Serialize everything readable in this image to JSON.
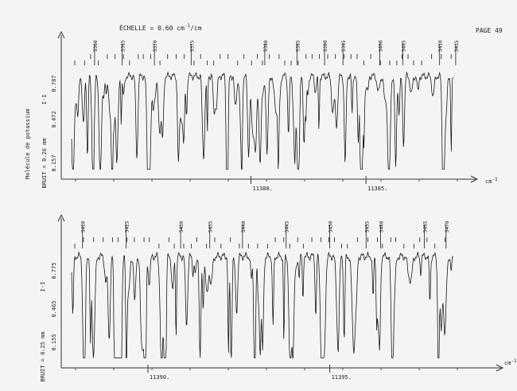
{
  "header": {
    "scale_prefix": "ÉCHELLE = 0.60 cm",
    "scale_sup": "-1",
    "scale_suffix": "/cm",
    "page_label": "PAGE 49"
  },
  "left_label": "Molécule de potassium",
  "chart_data": [
    {
      "type": "line",
      "y_ticks": [
        "0.787",
        "0.472",
        "0.157"
      ],
      "y_tick_values": [
        0.787,
        0.472,
        0.157
      ],
      "y_side_label_1": "I-I",
      "y_side_label_2": "BRUIT = 0.26 mm",
      "x_unit_prefix": "cm",
      "x_unit_sup": "-1",
      "x_ticks": [
        "11380.",
        "11385."
      ],
      "x_tick_values": [
        11380,
        11385
      ],
      "xlim": [
        11372.2,
        11388.8
      ],
      "ylim": [
        0,
        1
      ],
      "line_numbers": [
        "5360",
        "5365",
        "5370",
        "5375",
        "5380",
        "5385",
        "5390",
        "5395",
        "5400",
        "5405",
        "5410",
        "5415"
      ],
      "line_positions": [
        11373.2,
        11374.4,
        11375.8,
        11377.4,
        11380.6,
        11382.0,
        11383.2,
        11384.0,
        11385.6,
        11386.6,
        11388.2,
        11388.9
      ]
    },
    {
      "type": "line",
      "y_ticks": [
        "0.775",
        "0.465",
        "0.155"
      ],
      "y_tick_values": [
        0.775,
        0.465,
        0.155
      ],
      "y_side_label_1": "I-I",
      "y_side_label_2": "BRUIT = 0.25 mm",
      "x_unit_prefix": "cm",
      "x_unit_sup": "-1",
      "x_ticks": [
        "11390.",
        "11395."
      ],
      "x_tick_values": [
        11390,
        11395
      ],
      "xlim": [
        11387.9,
        11398.4
      ],
      "ylim": [
        0,
        1
      ],
      "line_numbers": [
        "5420",
        "5425",
        "5430",
        "5435",
        "5440",
        "5445",
        "5450",
        "5455",
        "5460",
        "5465",
        "5470"
      ],
      "line_positions": [
        11388.2,
        11389.4,
        11390.9,
        11391.7,
        11392.6,
        11393.8,
        11395.0,
        11396.0,
        11396.4,
        11397.6,
        11398.2
      ]
    }
  ]
}
